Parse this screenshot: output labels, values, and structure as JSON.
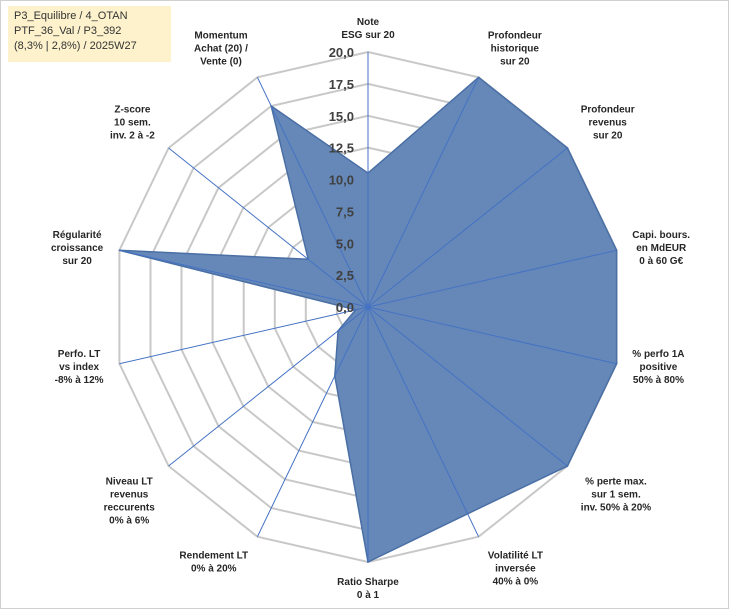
{
  "header": {
    "lines": [
      "P3_Equilibre / 4_OTAN",
      "PTF_36_Val / P3_392",
      "(8,3% | 2,8%) / 2025W27"
    ]
  },
  "chart_data": {
    "type": "radar",
    "title": "",
    "rmin": 0,
    "rmax": 20,
    "ticks": [
      "0,0",
      "2,5",
      "5,0",
      "7,5",
      "10,0",
      "12,5",
      "15,0",
      "17,5",
      "20,0"
    ],
    "tick_values": [
      0,
      2.5,
      5,
      7.5,
      10,
      12.5,
      15,
      17.5,
      20
    ],
    "axes": [
      {
        "label": [
          "Note",
          "ESG sur 20"
        ],
        "value": 10.5
      },
      {
        "label": [
          "Profondeur",
          "historique",
          "sur 20"
        ],
        "value": 20
      },
      {
        "label": [
          "Profondeur",
          "revenus",
          "sur 20"
        ],
        "value": 20
      },
      {
        "label": [
          "Capi. bours.",
          "en MdEUR",
          "0 à 60 G€"
        ],
        "value": 20
      },
      {
        "label": [
          "% perfo 1A",
          "positive",
          "50% à 80%"
        ],
        "value": 20
      },
      {
        "label": [
          "% perte max.",
          "sur 1 sem.",
          "inv. 50% à 20%"
        ],
        "value": 20
      },
      {
        "label": [
          "Volatilité LT",
          "inversée",
          "40% à 0%"
        ],
        "value": 18
      },
      {
        "label": [
          "Ratio Sharpe",
          "0 à 1"
        ],
        "value": 20
      },
      {
        "label": [
          "Rendement LT",
          "0% à 20%"
        ],
        "value": 6
      },
      {
        "label": [
          "Niveau LT",
          "revenus",
          "reccurents",
          "0% à 6%"
        ],
        "value": 3
      },
      {
        "label": [
          "Perfo. LT",
          "vs index",
          "-8% à 12%"
        ],
        "value": 1
      },
      {
        "label": [
          "Régularité",
          "croissance",
          "sur 20"
        ],
        "value": 20
      },
      {
        "label": [
          "Z-score",
          "10 sem.",
          "inv. 2 à -2"
        ],
        "value": 6
      },
      {
        "label": [
          "Momentum",
          "Achat (20) /",
          "Vente (0)"
        ],
        "value": 17.5
      }
    ],
    "colors": {
      "fill": "#6688b8",
      "outline": "#4a6fa5",
      "spokes": "#4472c4",
      "grid": "#c8c8c8"
    },
    "grid": true,
    "legend": "none"
  }
}
